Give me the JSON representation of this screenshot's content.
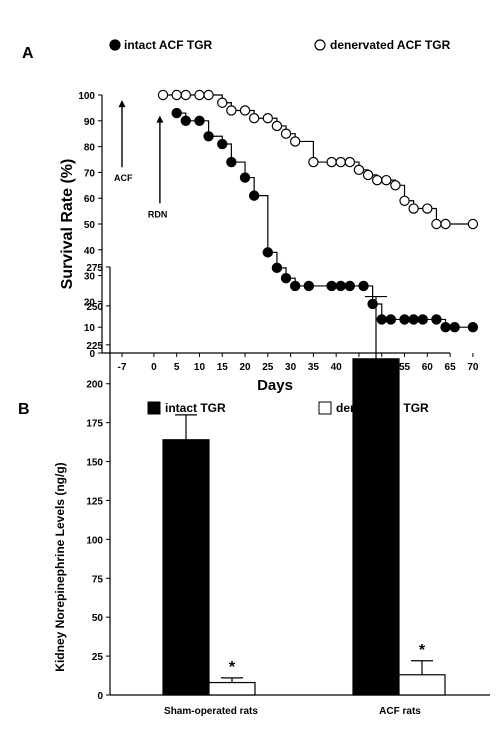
{
  "chart_data": [
    {
      "panel": "A",
      "type": "line",
      "step": true,
      "xlabel": "Days",
      "ylabel": "Survival Rate (%)",
      "xlim": [
        -10,
        71
      ],
      "ylim": [
        0,
        100
      ],
      "x_ticks": [
        -7,
        0,
        5,
        10,
        15,
        20,
        25,
        30,
        35,
        40,
        45,
        50,
        55,
        60,
        65,
        70
      ],
      "x_tick_labels": [
        "-7",
        "0",
        "5",
        "10",
        "15",
        "20",
        "25",
        "30",
        "35",
        "40",
        "45",
        "50",
        "55",
        "60",
        "65",
        "70"
      ],
      "y_ticks": [
        0,
        10,
        20,
        30,
        40,
        50,
        60,
        70,
        80,
        90,
        100
      ],
      "y_tick_labels": [
        "0",
        "10",
        "20",
        "30",
        "40",
        "50",
        "60",
        "70",
        "80",
        "90",
        "100"
      ],
      "annotations": [
        {
          "text": "ACF",
          "x": -7,
          "arrow_from": 72,
          "arrow_to": 98
        },
        {
          "text": "RDN",
          "x": 0,
          "arrow_from": 58,
          "arrow_to": 92
        }
      ],
      "legend_position": "top",
      "grid": false,
      "series": [
        {
          "name": "intact ACF TGR",
          "marker": "filled-circle",
          "color": "#000000",
          "points": [
            [
              5,
              93
            ],
            [
              7,
              90
            ],
            [
              10,
              90
            ],
            [
              12,
              84
            ],
            [
              15,
              81
            ],
            [
              17,
              74
            ],
            [
              20,
              68
            ],
            [
              22,
              61
            ],
            [
              25,
              39
            ],
            [
              27,
              33
            ],
            [
              29,
              29
            ],
            [
              31,
              26
            ],
            [
              34,
              26
            ],
            [
              39,
              26
            ],
            [
              41,
              26
            ],
            [
              43,
              26
            ],
            [
              46,
              26
            ],
            [
              48,
              19
            ],
            [
              50,
              13
            ],
            [
              52,
              13
            ],
            [
              55,
              13
            ],
            [
              57,
              13
            ],
            [
              59,
              13
            ],
            [
              62,
              13
            ],
            [
              64,
              10
            ],
            [
              66,
              10
            ],
            [
              70,
              10
            ]
          ]
        },
        {
          "name": "denervated ACF TGR",
          "marker": "open-circle",
          "color": "#000000",
          "points": [
            [
              2,
              100
            ],
            [
              5,
              100
            ],
            [
              7,
              100
            ],
            [
              10,
              100
            ],
            [
              12,
              100
            ],
            [
              15,
              97
            ],
            [
              17,
              94
            ],
            [
              20,
              94
            ],
            [
              22,
              91
            ],
            [
              25,
              91
            ],
            [
              27,
              88
            ],
            [
              29,
              85
            ],
            [
              31,
              82
            ],
            [
              35,
              74
            ],
            [
              39,
              74
            ],
            [
              41,
              74
            ],
            [
              43,
              74
            ],
            [
              45,
              71
            ],
            [
              47,
              69
            ],
            [
              49,
              67
            ],
            [
              51,
              67
            ],
            [
              53,
              65
            ],
            [
              55,
              59
            ],
            [
              57,
              56
            ],
            [
              60,
              56
            ],
            [
              62,
              50
            ],
            [
              64,
              50
            ],
            [
              70,
              50
            ]
          ]
        }
      ]
    },
    {
      "panel": "B",
      "type": "bar",
      "ylabel": "Kidney Norepinephrine Levels (ng/g)",
      "ylim": [
        0,
        275
      ],
      "y_ticks": [
        0,
        25,
        50,
        75,
        100,
        125,
        150,
        175,
        200,
        225,
        250,
        275
      ],
      "y_tick_labels": [
        "0",
        "25",
        "50",
        "75",
        "100",
        "125",
        "150",
        "175",
        "200",
        "225",
        "250",
        "275"
      ],
      "categories": [
        "Sham-operated rats",
        "ACF rats"
      ],
      "legend_position": "top",
      "grid": false,
      "series": [
        {
          "name": "intact TGR",
          "fill": "#000000",
          "values": [
            164,
            216
          ],
          "errors": [
            16,
            40
          ]
        },
        {
          "name": "denervated TGR",
          "fill": "#ffffff",
          "values": [
            8,
            13
          ],
          "errors": [
            3,
            9
          ]
        }
      ],
      "significance": [
        {
          "category": "Sham-operated rats",
          "series": "denervated TGR",
          "label": "*"
        },
        {
          "category": "ACF rats",
          "series": "denervated TGR",
          "label": "*"
        }
      ]
    }
  ]
}
